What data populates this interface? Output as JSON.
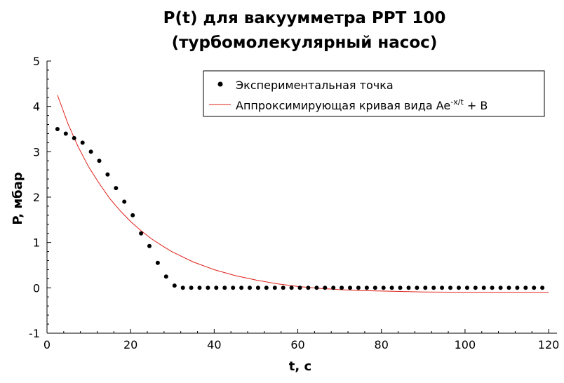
{
  "chart_data": {
    "type": "scatter",
    "title": "P(t) для вакуумметра PPT 100",
    "subtitle": "(турбомолекулярный насос)",
    "xlabel": "t, с",
    "ylabel": "P, мбар",
    "xlim": [
      0,
      122
    ],
    "ylim": [
      -1,
      5
    ],
    "xticks": [
      0,
      20,
      40,
      60,
      80,
      100,
      120
    ],
    "yticks": [
      -1,
      0,
      1,
      2,
      3,
      4,
      5
    ],
    "grid": false,
    "legend_position": "top-right",
    "legend": {
      "points_label": "Экспериментальная точка",
      "curve_label_main": "Аппроксимирующая кривая вида Ae",
      "curve_label_sup": "-x/t",
      "curve_label_tail": " + B"
    },
    "colors": {
      "points": "#000000",
      "curve": "#e0201a"
    },
    "series": [
      {
        "kind": "points",
        "x": [
          2.5,
          4.5,
          6.5,
          8.5,
          10.5,
          12.5,
          14.5,
          16.5,
          18.5,
          20.5,
          22.5,
          24.5,
          26.5,
          28.5,
          30.5,
          32.5,
          34.5,
          36.5,
          38.5,
          40.5,
          42.5,
          44.5,
          46.5,
          48.5,
          50.5,
          52.5,
          54.5,
          56.5,
          58.5,
          60.5,
          62.5,
          64.5,
          66.5,
          68.5,
          70.5,
          72.5,
          74.5,
          76.5,
          78.5,
          80.5,
          82.5,
          84.5,
          86.5,
          88.5,
          90.5,
          92.5,
          94.5,
          96.5,
          98.5,
          100.5,
          102.5,
          104.5,
          106.5,
          108.5,
          110.5,
          112.5,
          114.5,
          116.5,
          118.5
        ],
        "y": [
          3.5,
          3.4,
          3.3,
          3.2,
          3.0,
          2.8,
          2.5,
          2.2,
          1.9,
          1.6,
          1.2,
          0.92,
          0.55,
          0.25,
          0.05,
          0.0,
          0.0,
          0.0,
          0.0,
          0.0,
          0.0,
          0.0,
          0.0,
          0.0,
          0.0,
          0.0,
          0.0,
          0.0,
          0.0,
          0.0,
          0.0,
          0.0,
          0.0,
          0.0,
          0.0,
          0.0,
          0.0,
          0.0,
          0.0,
          0.0,
          0.0,
          0.0,
          0.0,
          0.0,
          0.0,
          0.0,
          0.0,
          0.0,
          0.0,
          0.0,
          0.0,
          0.0,
          0.0,
          0.0,
          0.0,
          0.0,
          0.0,
          0.0,
          0.0
        ]
      },
      {
        "kind": "curve",
        "x": [
          2.5,
          5,
          7.5,
          10,
          12.5,
          15,
          17.5,
          20,
          22.5,
          25,
          27.5,
          30,
          35,
          40,
          45,
          50,
          55,
          60,
          65,
          70,
          75,
          80,
          90,
          100,
          110,
          120
        ],
        "y": [
          4.25,
          3.62,
          3.1,
          2.66,
          2.3,
          1.97,
          1.7,
          1.46,
          1.26,
          1.08,
          0.93,
          0.79,
          0.57,
          0.4,
          0.27,
          0.17,
          0.09,
          0.03,
          -0.01,
          -0.04,
          -0.06,
          -0.07,
          -0.09,
          -0.1,
          -0.1,
          -0.1
        ]
      }
    ]
  }
}
